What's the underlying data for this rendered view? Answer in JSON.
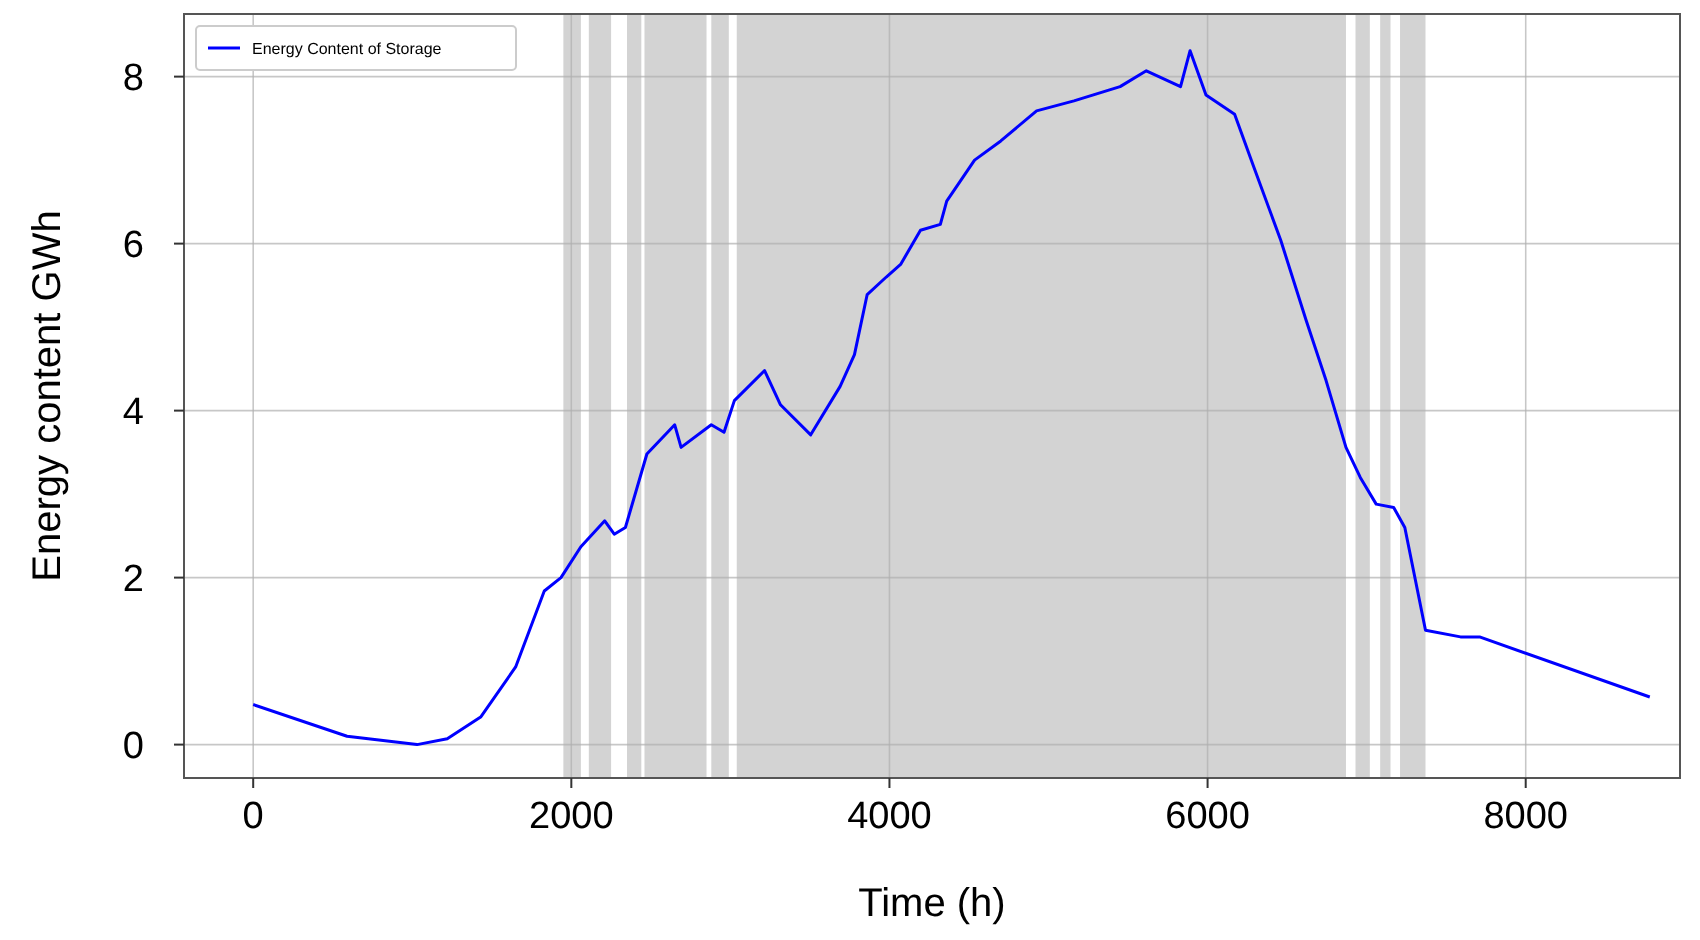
{
  "chart_data": {
    "type": "line",
    "xlabel": "Time (h)",
    "ylabel": "Energy content GWh",
    "xlim": [
      -435,
      8970
    ],
    "ylim": [
      -0.4,
      8.75
    ],
    "xticks": [
      0,
      2000,
      4000,
      6000,
      8000
    ],
    "yticks": [
      0,
      2,
      4,
      6,
      8
    ],
    "grid": true,
    "legend": "top left",
    "series": [
      {
        "name": "Energy Content of Storage",
        "color": "#0000ff",
        "x": [
          0,
          590,
          1030,
          1220,
          1430,
          1650,
          1830,
          1935,
          2060,
          2210,
          2270,
          2340,
          2475,
          2650,
          2690,
          2880,
          2960,
          3025,
          3215,
          3315,
          3505,
          3690,
          3780,
          3860,
          3980,
          4070,
          4195,
          4320,
          4360,
          4535,
          4700,
          4925,
          5160,
          5450,
          5615,
          5830,
          5890,
          5990,
          6170,
          6290,
          6460,
          6620,
          6745,
          6870,
          6960,
          7060,
          7170,
          7240,
          7370,
          7590,
          7710,
          8780
        ],
        "values": [
          0.48,
          0.1,
          0.0,
          0.07,
          0.33,
          0.93,
          1.84,
          2.0,
          2.37,
          2.68,
          2.52,
          2.6,
          3.48,
          3.83,
          3.56,
          3.83,
          3.74,
          4.12,
          4.48,
          4.07,
          3.71,
          4.29,
          4.67,
          5.39,
          5.6,
          5.75,
          6.16,
          6.23,
          6.51,
          7.0,
          7.23,
          7.59,
          7.71,
          7.88,
          8.07,
          7.88,
          8.31,
          7.78,
          7.55,
          6.92,
          6.04,
          5.08,
          4.36,
          3.56,
          3.2,
          2.88,
          2.84,
          2.6,
          1.37,
          1.29,
          1.29,
          0.57
        ]
      }
    ],
    "bands": [
      {
        "axis": "x",
        "from": 1950,
        "to": 2060,
        "color": "#d3d3d3"
      },
      {
        "axis": "x",
        "from": 2110,
        "to": 2250,
        "color": "#d3d3d3"
      },
      {
        "axis": "x",
        "from": 2350,
        "to": 2440,
        "color": "#d3d3d3"
      },
      {
        "axis": "x",
        "from": 2460,
        "to": 2850,
        "color": "#d3d3d3"
      },
      {
        "axis": "x",
        "from": 2880,
        "to": 2990,
        "color": "#d3d3d3"
      },
      {
        "axis": "x",
        "from": 3040,
        "to": 6870,
        "color": "#d3d3d3"
      },
      {
        "axis": "x",
        "from": 6930,
        "to": 7020,
        "color": "#d3d3d3"
      },
      {
        "axis": "x",
        "from": 7085,
        "to": 7150,
        "color": "#d3d3d3"
      },
      {
        "axis": "x",
        "from": 7210,
        "to": 7370,
        "color": "#d3d3d3"
      }
    ]
  }
}
